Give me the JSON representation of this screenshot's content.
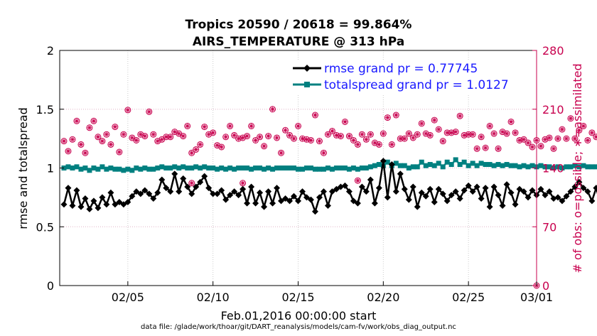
{
  "chart_data": {
    "type": "line",
    "title": "Tropics 20590 / 20618 = 99.864%",
    "subtitle": "AIRS_TEMPERATURE @ 313 hPa",
    "xlabel": "Feb.01,2016 00:00:00 start",
    "ylabel": "rmse and totalspread",
    "ylabel_right": "# of obs: o=possible; ∗=assimilated",
    "footnote": "data file: /glade/work/thoar/git/DART_reanalysis/models/cam-fv/work/obs_diag_output.nc",
    "xlim": [
      1,
      29
    ],
    "ylim": [
      0,
      2
    ],
    "ylim_right": [
      0,
      280
    ],
    "x_tick_values": [
      5,
      10,
      15,
      20,
      25,
      29
    ],
    "x_tick_labels": [
      "02/05",
      "02/10",
      "02/15",
      "02/20",
      "02/25",
      "03/01"
    ],
    "y_tick_values": [
      0,
      0.5,
      1,
      1.5,
      2
    ],
    "y_tick_labels": [
      "0",
      "0.5",
      "1",
      "1.5",
      "2"
    ],
    "y_right_tick_values": [
      0,
      70,
      140,
      210,
      280
    ],
    "y_right_tick_labels": [
      "0",
      "70",
      "140",
      "210",
      "280"
    ],
    "grid": true,
    "legend_position": "top-right",
    "x_start": 1.25,
    "x_step": 0.25,
    "series": [
      {
        "name": "rmse",
        "legend": "rmse grand pr = 0.77745",
        "color": "#000000",
        "marker": "diamond",
        "axis": "left",
        "values": [
          0.69,
          0.83,
          0.68,
          0.81,
          0.67,
          0.74,
          0.65,
          0.72,
          0.66,
          0.75,
          0.69,
          0.79,
          0.69,
          0.71,
          0.69,
          0.71,
          0.76,
          0.8,
          0.78,
          0.81,
          0.78,
          0.74,
          0.79,
          0.9,
          0.83,
          0.8,
          0.95,
          0.8,
          0.91,
          0.84,
          0.78,
          0.84,
          0.88,
          0.93,
          0.83,
          0.78,
          0.78,
          0.81,
          0.73,
          0.77,
          0.8,
          0.77,
          0.82,
          0.7,
          0.84,
          0.7,
          0.79,
          0.67,
          0.8,
          0.7,
          0.83,
          0.72,
          0.74,
          0.72,
          0.76,
          0.72,
          0.8,
          0.75,
          0.73,
          0.63,
          0.75,
          0.8,
          0.68,
          0.8,
          0.82,
          0.84,
          0.85,
          0.8,
          0.72,
          0.7,
          0.84,
          0.8,
          0.9,
          0.7,
          0.83,
          1.06,
          0.75,
          1.03,
          0.8,
          0.95,
          0.82,
          0.73,
          0.84,
          0.67,
          0.79,
          0.76,
          0.82,
          0.71,
          0.82,
          0.78,
          0.72,
          0.77,
          0.8,
          0.74,
          0.81,
          0.85,
          0.8,
          0.84,
          0.74,
          0.83,
          0.67,
          0.84,
          0.77,
          0.68,
          0.86,
          0.79,
          0.69,
          0.82,
          0.8,
          0.75,
          0.81,
          0.77,
          0.82,
          0.77,
          0.8,
          0.74,
          0.75,
          0.72,
          0.76,
          0.8,
          0.84,
          0.88,
          0.83,
          0.8,
          0.72,
          0.83,
          0.7,
          0.8,
          0.77,
          0.82,
          0.73,
          0.78,
          0.74,
          0.8,
          0.71,
          0.8,
          0.86
        ]
      },
      {
        "name": "totalspread",
        "legend": "totalspread grand pr = 1.0127",
        "color": "#008080",
        "marker": "square",
        "axis": "left",
        "values": [
          1.0,
          1.01,
          1.0,
          1.01,
          0.99,
          1.0,
          0.98,
          1.0,
          0.99,
          1.01,
          0.99,
          1.0,
          0.99,
          0.99,
          0.98,
          0.99,
          0.98,
          1.0,
          0.99,
          1.0,
          0.99,
          0.99,
          1.0,
          1.01,
          1.0,
          1.0,
          1.01,
          1.0,
          1.01,
          1.0,
          1.0,
          1.01,
          1.0,
          1.01,
          1.0,
          1.0,
          0.99,
          1.0,
          0.99,
          1.0,
          0.99,
          1.0,
          1.0,
          1.0,
          0.99,
          1.0,
          1.0,
          0.99,
          1.0,
          0.99,
          1.0,
          1.0,
          1.0,
          1.0,
          1.0,
          0.99,
          0.99,
          1.0,
          1.0,
          0.99,
          0.99,
          0.99,
          1.0,
          0.99,
          1.0,
          1.0,
          1.0,
          0.99,
          1.0,
          0.99,
          1.0,
          1.0,
          1.01,
          1.02,
          1.03,
          1.02,
          1.05,
          1.02,
          1.04,
          1.02,
          1.02,
          1.0,
          1.01,
          1.01,
          1.05,
          1.02,
          1.03,
          1.02,
          1.04,
          1.01,
          1.05,
          1.03,
          1.07,
          1.03,
          1.05,
          1.02,
          1.04,
          1.02,
          1.04,
          1.03,
          1.03,
          1.02,
          1.03,
          1.02,
          1.03,
          1.02,
          1.02,
          1.01,
          1.02,
          1.01,
          1.02,
          1.01,
          1.02,
          1.01,
          1.01,
          1.0,
          1.01,
          1.0,
          1.01,
          1.01,
          1.02,
          1.01,
          1.02,
          1.01,
          1.01,
          1.01,
          1.02,
          1.01,
          1.02,
          1.01,
          1.02,
          1.01,
          1.02,
          1.01,
          1.01,
          1.0,
          1.01
        ]
      },
      {
        "name": "obs_possible",
        "legend": "o=possible",
        "color": "#c8004e",
        "marker": "circle",
        "axis": "right",
        "values": [
          172,
          160,
          174,
          196,
          168,
          158,
          188,
          196,
          177,
          172,
          180,
          168,
          189,
          159,
          180,
          209,
          176,
          173,
          180,
          178,
          207,
          180,
          172,
          174,
          177,
          177,
          183,
          181,
          178,
          190,
          158,
          162,
          168,
          189,
          180,
          182,
          167,
          165,
          177,
          190,
          179,
          175,
          176,
          178,
          190,
          173,
          177,
          166,
          178,
          210,
          176,
          158,
          185,
          179,
          175,
          190,
          175,
          174,
          173,
          203,
          172,
          158,
          180,
          184,
          179,
          178,
          195,
          178,
          173,
          168,
          180,
          174,
          180,
          170,
          168,
          181,
          200,
          168,
          203,
          175,
          175,
          181,
          176,
          180,
          193,
          181,
          179,
          197,
          186,
          172,
          182,
          182,
          183,
          202,
          179,
          180,
          180,
          163,
          177,
          164,
          190,
          181,
          163,
          183,
          181,
          195,
          182,
          173,
          174,
          170,
          165,
          173,
          166,
          174,
          176,
          163,
          175,
          186,
          175,
          199,
          175,
          185,
          190,
          173,
          182,
          177,
          183,
          184,
          159,
          173,
          181,
          185,
          178,
          172,
          183,
          167,
          197
        ]
      },
      {
        "name": "obs_assimilated",
        "legend": "∗=assimilated",
        "color": "#c8004e",
        "marker": "asterisk",
        "axis": "right",
        "values": [
          172,
          160,
          174,
          196,
          168,
          158,
          188,
          196,
          177,
          172,
          180,
          168,
          189,
          159,
          180,
          209,
          176,
          173,
          180,
          178,
          207,
          180,
          172,
          174,
          177,
          177,
          183,
          181,
          178,
          190,
          158,
          162,
          168,
          189,
          180,
          182,
          167,
          165,
          177,
          190,
          179,
          175,
          176,
          178,
          190,
          173,
          177,
          166,
          178,
          210,
          176,
          158,
          185,
          179,
          175,
          190,
          175,
          174,
          173,
          203,
          172,
          158,
          180,
          184,
          179,
          178,
          195,
          178,
          173,
          168,
          180,
          174,
          180,
          170,
          168,
          181,
          200,
          168,
          203,
          175,
          175,
          181,
          176,
          180,
          193,
          181,
          179,
          197,
          186,
          172,
          182,
          182,
          183,
          202,
          179,
          180,
          180,
          163,
          177,
          164,
          190,
          181,
          163,
          183,
          181,
          195,
          182,
          173,
          174,
          170,
          165,
          173,
          166,
          174,
          176,
          163,
          175,
          186,
          175,
          199,
          175,
          185,
          190,
          173,
          182,
          177,
          183,
          184,
          159,
          173,
          181,
          185,
          178,
          172,
          183,
          167,
          197
        ]
      }
    ],
    "extra_points": [
      {
        "series": "obs_assimilated",
        "x": 18.5,
        "value": 125
      },
      {
        "series": "obs_assimilated",
        "x": 8.75,
        "value": 122
      },
      {
        "series": "obs_assimilated",
        "x": 11.75,
        "value": 122
      },
      {
        "series": "obs_assimilated",
        "x": 29,
        "value": 0
      }
    ]
  }
}
